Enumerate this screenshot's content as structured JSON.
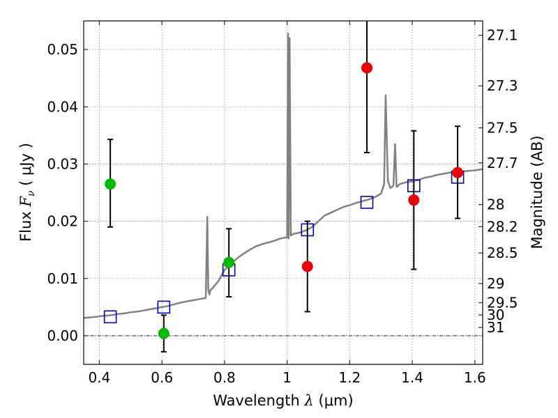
{
  "chart_data": {
    "type": "scatter",
    "xlabel": {
      "prefix": "Wavelength  ",
      "symbol": "λ",
      "unit": " (μm)"
    },
    "ylabel": {
      "prefix": "Flux  ",
      "symbol": "F",
      "sub": "ν",
      "unit": "  ( μJy )"
    },
    "y2label": "Magnitude (AB)",
    "xlim": [
      0.35,
      1.625
    ],
    "ylim": [
      -0.005,
      0.055
    ],
    "grid": true,
    "xticks": [
      0.4,
      0.6,
      0.8,
      1.0,
      1.2,
      1.4,
      1.6
    ],
    "xtick_labels": [
      "0.4",
      "0.6",
      "0.8",
      "1",
      "1.2",
      "1.4",
      "1.6"
    ],
    "yticks": [
      0.0,
      0.01,
      0.02,
      0.03,
      0.04,
      0.05
    ],
    "ytick_labels": [
      "0.00",
      "0.01",
      "0.02",
      "0.03",
      "0.04",
      "0.05"
    ],
    "mag_ticks": [
      {
        "label": "27.1",
        "mag": 27.1
      },
      {
        "label": "27.3",
        "mag": 27.3
      },
      {
        "label": "27.5",
        "mag": 27.5
      },
      {
        "label": "27.7",
        "mag": 27.7
      },
      {
        "label": "28",
        "mag": 28.0
      },
      {
        "label": "28.2",
        "mag": 28.2
      },
      {
        "label": "28.5",
        "mag": 28.5
      },
      {
        "label": "29",
        "mag": 29.0
      },
      {
        "label": "29.5",
        "mag": 29.5
      },
      {
        "label": "30",
        "mag": 30.0
      },
      {
        "label": "31",
        "mag": 31.0
      }
    ],
    "colors": {
      "model_spectrum": "#808080",
      "model_photometry": "#0000cc",
      "green_points": "#00bb00",
      "red_points": "#ee0000",
      "errorbars": "#000000",
      "zero_line": "#000000",
      "grid": "#888888"
    },
    "series": [
      {
        "kind": "line",
        "color_key": "model_spectrum",
        "x": [
          0.35,
          0.37,
          0.39,
          0.4,
          0.42,
          0.44,
          0.46,
          0.48,
          0.5,
          0.52,
          0.54,
          0.56,
          0.58,
          0.6,
          0.62,
          0.64,
          0.66,
          0.68,
          0.7,
          0.72,
          0.74,
          0.745,
          0.748,
          0.752,
          0.755,
          0.76,
          0.78,
          0.8,
          0.82,
          0.84,
          0.86,
          0.88,
          0.9,
          0.92,
          0.94,
          0.96,
          0.98,
          1.0,
          1.003,
          1.005,
          1.008,
          1.012,
          1.02,
          1.04,
          1.06,
          1.08,
          1.1,
          1.12,
          1.14,
          1.16,
          1.18,
          1.2,
          1.22,
          1.24,
          1.26,
          1.28,
          1.3,
          1.31,
          1.315,
          1.322,
          1.33,
          1.34,
          1.345,
          1.35,
          1.355,
          1.36,
          1.38,
          1.4,
          1.42,
          1.44,
          1.46,
          1.48,
          1.5,
          1.52,
          1.54,
          1.56,
          1.58,
          1.6,
          1.625
        ],
        "y": [
          0.0031,
          0.0032,
          0.0033,
          0.0034,
          0.0035,
          0.0036,
          0.0038,
          0.0039,
          0.0041,
          0.0042,
          0.0044,
          0.0046,
          0.0048,
          0.005,
          0.0052,
          0.0055,
          0.0058,
          0.006,
          0.0062,
          0.0064,
          0.0066,
          0.0208,
          0.008,
          0.0072,
          0.008,
          0.0082,
          0.0095,
          0.0115,
          0.0125,
          0.0135,
          0.0143,
          0.015,
          0.0156,
          0.016,
          0.0163,
          0.0166,
          0.017,
          0.0172,
          0.0528,
          0.017,
          0.052,
          0.0175,
          0.0178,
          0.018,
          0.0184,
          0.019,
          0.02,
          0.021,
          0.0215,
          0.022,
          0.0225,
          0.0228,
          0.0232,
          0.0235,
          0.0238,
          0.0242,
          0.0248,
          0.0265,
          0.042,
          0.027,
          0.0258,
          0.0262,
          0.0335,
          0.026,
          0.0262,
          0.0265,
          0.0268,
          0.027,
          0.0272,
          0.0276,
          0.0278,
          0.0281,
          0.0283,
          0.0285,
          0.0286,
          0.0287,
          0.0288,
          0.0289,
          0.0291
        ]
      },
      {
        "kind": "model_photometry",
        "color_key": "model_photometry",
        "marker": "open-square",
        "points": [
          {
            "x": 0.435,
            "y": 0.0033
          },
          {
            "x": 0.606,
            "y": 0.005
          },
          {
            "x": 0.814,
            "y": 0.0115
          },
          {
            "x": 1.065,
            "y": 0.0185
          },
          {
            "x": 1.255,
            "y": 0.0233
          },
          {
            "x": 1.405,
            "y": 0.0262
          },
          {
            "x": 1.545,
            "y": 0.0277
          }
        ]
      },
      {
        "kind": "observed",
        "color_key": "green_points",
        "marker": "filled-circle",
        "points": [
          {
            "x": 0.435,
            "y": 0.0265,
            "lo": 0.019,
            "hi": 0.0343
          },
          {
            "x": 0.606,
            "y": 0.0004,
            "lo": -0.0028,
            "hi": 0.0036
          },
          {
            "x": 0.814,
            "y": 0.0128,
            "lo": 0.0068,
            "hi": 0.0187
          }
        ]
      },
      {
        "kind": "observed",
        "color_key": "red_points",
        "marker": "filled-circle",
        "points": [
          {
            "x": 1.065,
            "y": 0.0121,
            "lo": 0.0042,
            "hi": 0.02
          },
          {
            "x": 1.255,
            "y": 0.0468,
            "lo": 0.032,
            "hi": 0.056
          },
          {
            "x": 1.405,
            "y": 0.0237,
            "lo": 0.0116,
            "hi": 0.0358
          },
          {
            "x": 1.545,
            "y": 0.0285,
            "lo": 0.0205,
            "hi": 0.0366
          }
        ]
      }
    ]
  }
}
